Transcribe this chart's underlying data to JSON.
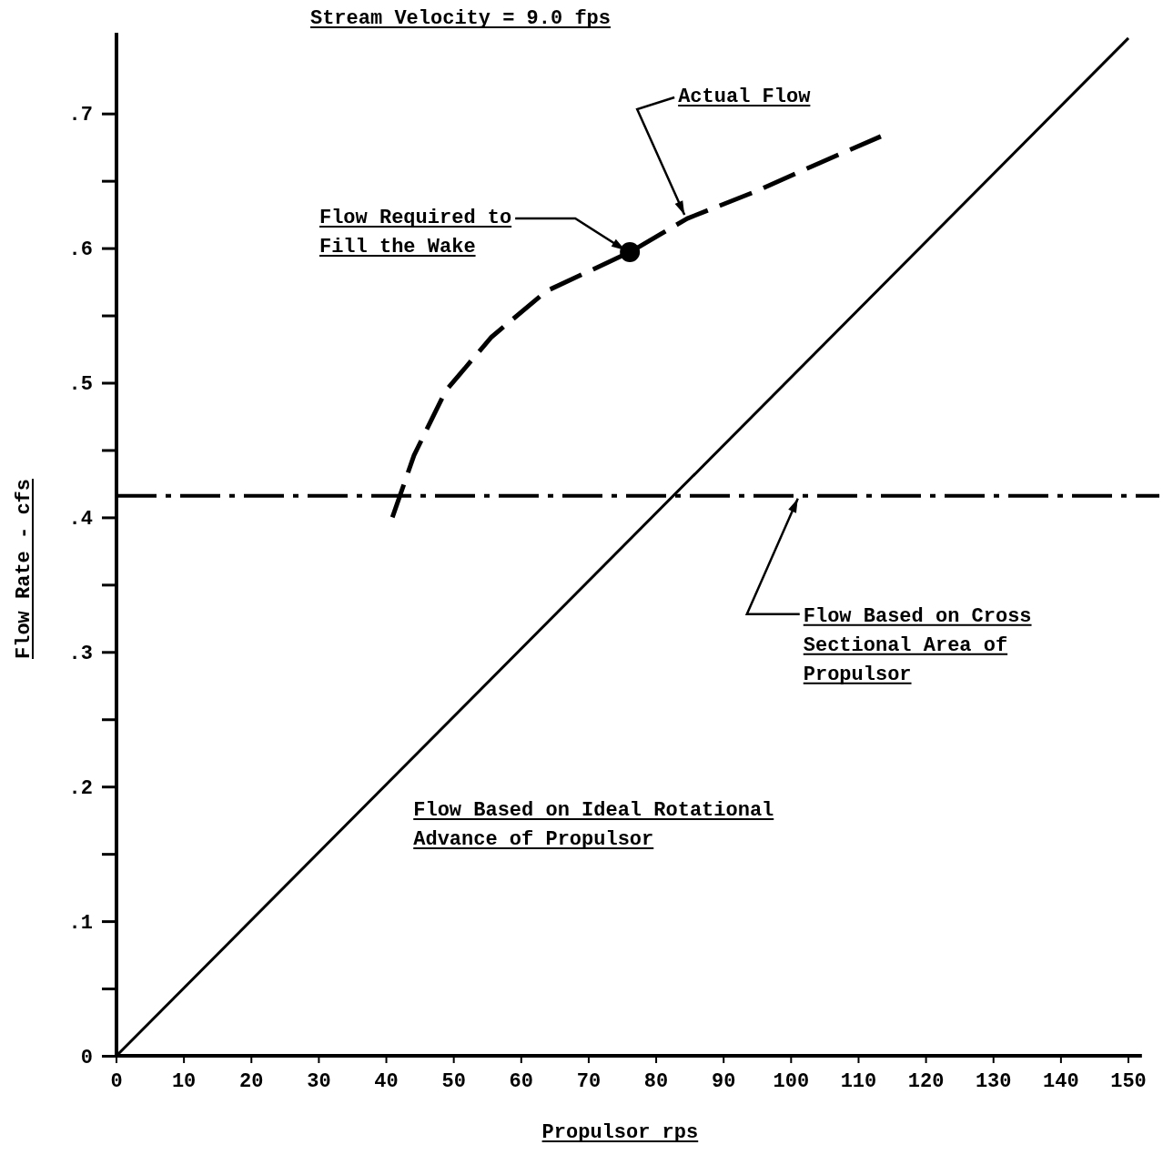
{
  "chart_data": {
    "type": "line",
    "title": "Stream Velocity = 9.0 fps",
    "xlabel": "Propulsor rps",
    "ylabel": "Flow Rate - cfs",
    "xlim": [
      0,
      152
    ],
    "ylim": [
      0,
      0.76
    ],
    "xticks": [
      0,
      10,
      20,
      30,
      40,
      50,
      60,
      70,
      80,
      90,
      100,
      110,
      120,
      130,
      140,
      150
    ],
    "yticks": [
      {
        "value": 0,
        "label": "0"
      },
      {
        "value": 0.05,
        "label": null
      },
      {
        "value": 0.1,
        "label": ".1"
      },
      {
        "value": 0.15,
        "label": null
      },
      {
        "value": 0.2,
        "label": ".2"
      },
      {
        "value": 0.25,
        "label": null
      },
      {
        "value": 0.3,
        "label": ".3"
      },
      {
        "value": 0.35,
        "label": null
      },
      {
        "value": 0.4,
        "label": ".4"
      },
      {
        "value": 0.45,
        "label": null
      },
      {
        "value": 0.5,
        "label": ".5"
      },
      {
        "value": 0.55,
        "label": null
      },
      {
        "value": 0.6,
        "label": ".6"
      },
      {
        "value": 0.65,
        "label": null
      },
      {
        "value": 0.7,
        "label": ".7"
      }
    ],
    "grid": false,
    "legend": false,
    "series": [
      {
        "name": "Flow Based on Ideal Rotational Advance of Propulsor",
        "type": "line",
        "color": "#000000",
        "line_style": "solid",
        "x": [
          0,
          150
        ],
        "values": [
          0,
          0.756
        ]
      },
      {
        "name": "Actual Flow",
        "type": "line",
        "color": "#000000",
        "line_style": "dashed",
        "x": [
          40.9,
          44.1,
          48.8,
          55.6,
          63.7,
          76.1,
          84.6,
          94.7,
          104.1,
          113.3
        ],
        "values": [
          0.4,
          0.446,
          0.494,
          0.534,
          0.568,
          0.597,
          0.622,
          0.642,
          0.663,
          0.683
        ]
      },
      {
        "type": "scatter",
        "color": "#000000",
        "marker": "circle",
        "x": [
          76.1
        ],
        "values": [
          0.597
        ]
      }
    ],
    "ref_lines": [
      {
        "axis": "y",
        "value": 0.416,
        "label": "Flow Based on Cross Sectional Area of Propulsor",
        "color": "#000000",
        "line_style": "dashed"
      }
    ],
    "annotations": [
      {
        "text": "Flow Required to Fill the Wake",
        "x": 76.1,
        "y": 0.597
      }
    ]
  }
}
